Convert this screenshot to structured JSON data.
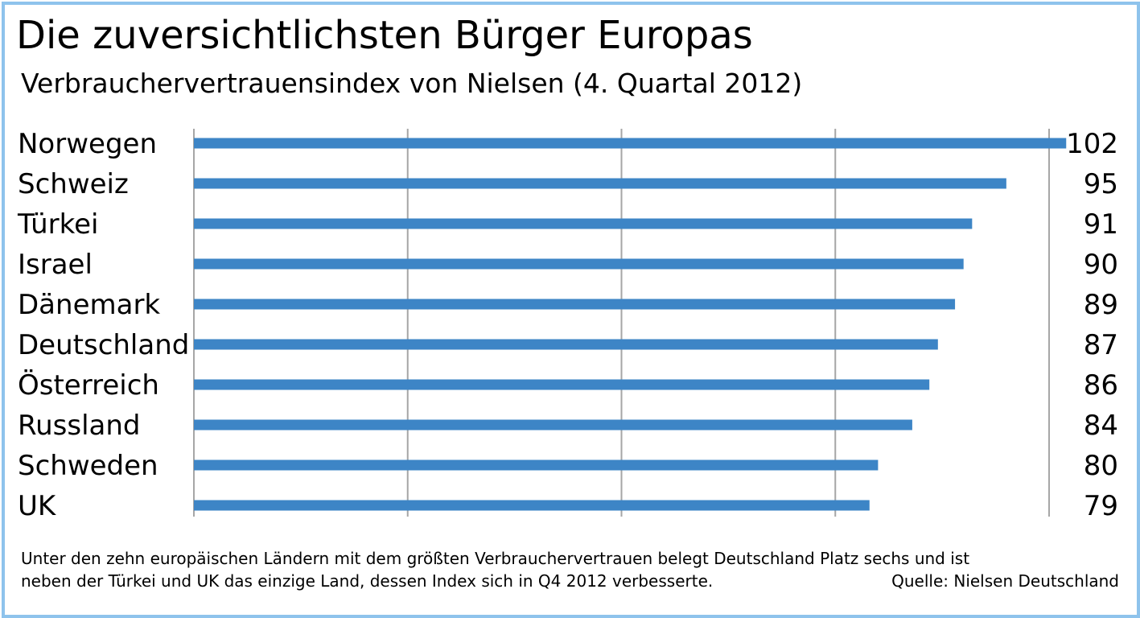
{
  "header": {
    "title": "Die zuversichtlichsten Bürger Europas",
    "subtitle": "Verbrauchervertrauensindex von Nielsen (4. Quartal 2012)"
  },
  "colors": {
    "bar": "#3d85c6",
    "border": "#8ec3ec",
    "grid": "#a6a6a6"
  },
  "chart_data": {
    "type": "bar",
    "orientation": "horizontal",
    "categories": [
      "Norwegen",
      "Schweiz",
      "Türkei",
      "Israel",
      "Dänemark",
      "Deutschland",
      "Österreich",
      "Russland",
      "Schweden",
      "UK"
    ],
    "values": [
      102,
      95,
      91,
      90,
      89,
      87,
      86,
      84,
      80,
      79
    ],
    "value_labels": [
      "102",
      "95",
      "91",
      "90",
      "89",
      "87",
      "86",
      "84",
      "80",
      "79"
    ],
    "xlim": [
      0,
      100
    ],
    "grid": true,
    "xlabel": "",
    "ylabel": ""
  },
  "footnote": {
    "line1": "Unter den zehn europäischen Ländern mit dem größten Verbrauchervertrauen belegt Deutschland Platz sechs und ist",
    "line2": "neben der Türkei und UK das einzige Land, dessen Index sich in Q4 2012 verbesserte.",
    "source": "Quelle: Nielsen Deutschland"
  }
}
